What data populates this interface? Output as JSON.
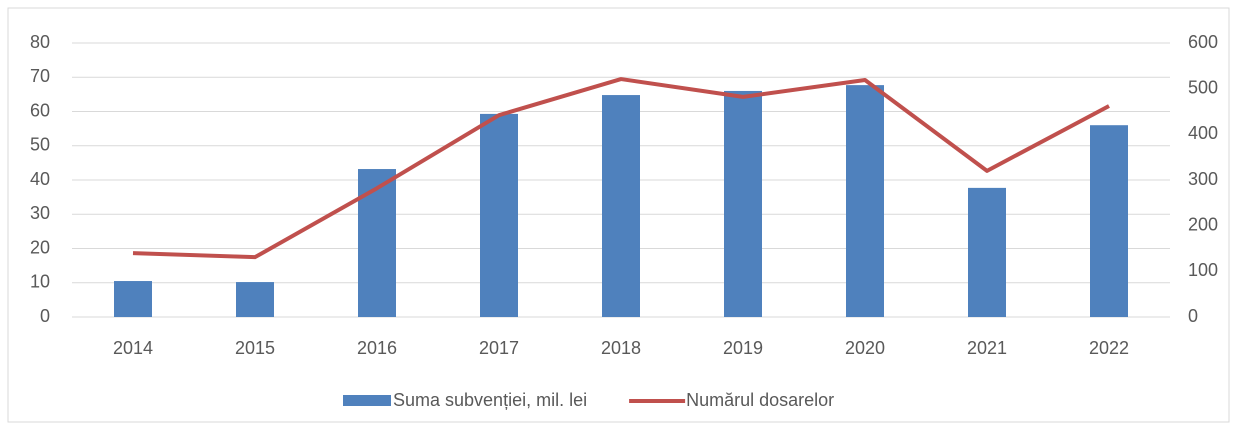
{
  "chart_data": {
    "type": "combo",
    "categories": [
      "2014",
      "2015",
      "2016",
      "2017",
      "2018",
      "2019",
      "2020",
      "2021",
      "2022"
    ],
    "series": [
      {
        "name": "Suma subvenției, mil. lei",
        "type": "bar",
        "color": "#4f81bd",
        "values": [
          10.5,
          10.2,
          43.2,
          59.3,
          64.8,
          66,
          67.7,
          37.7,
          56
        ]
      },
      {
        "name": "Numărul dosarelor",
        "type": "line",
        "axis": "y2",
        "color": "#c0504d",
        "values": [
          140,
          131,
          282,
          442,
          521,
          482,
          519,
          320,
          462
        ]
      }
    ],
    "ylim": [
      0,
      80
    ],
    "yticks": [
      0,
      10,
      20,
      30,
      40,
      50,
      60,
      70,
      80
    ],
    "y2lim": [
      0,
      600
    ],
    "y2ticks": [
      0,
      100,
      200,
      300,
      400,
      500,
      600
    ],
    "grid": true,
    "legend": "bottom"
  }
}
